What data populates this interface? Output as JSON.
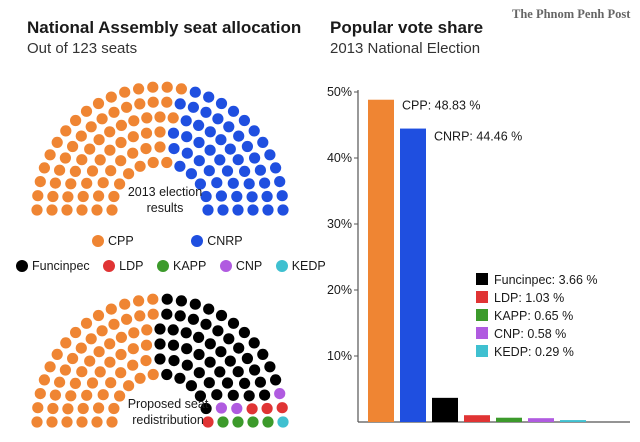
{
  "masthead": "The Phnom Penh Post",
  "seats": {
    "title": "National Assembly seat allocation",
    "subtitle": "Out of 123 seats",
    "hemicycle_top_label": [
      "2013 election",
      "results"
    ],
    "hemicycle_bottom_label": [
      "Proposed seat",
      "redistribution"
    ],
    "legend_top": [
      {
        "name": "CPP",
        "color": "#ef8533"
      },
      {
        "name": "CNRP",
        "color": "#1f4fe0"
      }
    ],
    "legend_bottom": [
      {
        "name": "Funcinpec",
        "color": "#000000"
      },
      {
        "name": "LDP",
        "color": "#e03434"
      },
      {
        "name": "KAPP",
        "color": "#3c9a2b"
      },
      {
        "name": "CNP",
        "color": "#b05be0"
      },
      {
        "name": "KEDP",
        "color": "#3fc0d0"
      }
    ]
  },
  "vote": {
    "title": "Popular vote share",
    "subtitle": "2013 National Election"
  },
  "chart_data": [
    {
      "type": "bar",
      "title": "Popular vote share",
      "subtitle": "2013 National Election",
      "categories": [
        "CPP",
        "CNRP",
        "Funcinpec",
        "LDP",
        "KAPP",
        "CNP",
        "KEDP"
      ],
      "values": [
        48.83,
        44.46,
        3.66,
        1.03,
        0.65,
        0.58,
        0.29
      ],
      "data_labels": [
        "CPP: 48.83 %",
        "CNRP: 44.46 %",
        "Funcinpec: 3.66 %",
        "LDP: 1.03 %",
        "KAPP: 0.65 %",
        "CNP: 0.58 %",
        "KEDP: 0.29 %"
      ],
      "colors": [
        "#ef8533",
        "#1f4fe0",
        "#000000",
        "#e03434",
        "#3c9a2b",
        "#b05be0",
        "#3fc0d0"
      ],
      "ylim": [
        0,
        50
      ],
      "yticks": [
        "10%",
        "20%",
        "30%",
        "40%",
        "50%"
      ],
      "ytick_values": [
        10,
        20,
        30,
        40,
        50
      ],
      "xlabel": "",
      "ylabel": "",
      "grid": false
    },
    {
      "type": "hemicycle",
      "title": "2013 election results",
      "total": 123,
      "series": [
        {
          "name": "CPP",
          "value": 68,
          "color": "#ef8533"
        },
        {
          "name": "CNRP",
          "value": 55,
          "color": "#1f4fe0"
        }
      ]
    },
    {
      "type": "hemicycle",
      "title": "Proposed seat redistribution",
      "total": 123,
      "series": [
        {
          "name": "CPP",
          "value": 60,
          "color": "#ef8533"
        },
        {
          "name": "Funcinpec",
          "value": 51,
          "color": "#000000"
        },
        {
          "name": "CNP",
          "value": 3,
          "color": "#b05be0"
        },
        {
          "name": "LDP",
          "value": 4,
          "color": "#e03434"
        },
        {
          "name": "KAPP",
          "value": 4,
          "color": "#3c9a2b"
        },
        {
          "name": "KEDP",
          "value": 1,
          "color": "#3fc0d0"
        }
      ]
    }
  ]
}
